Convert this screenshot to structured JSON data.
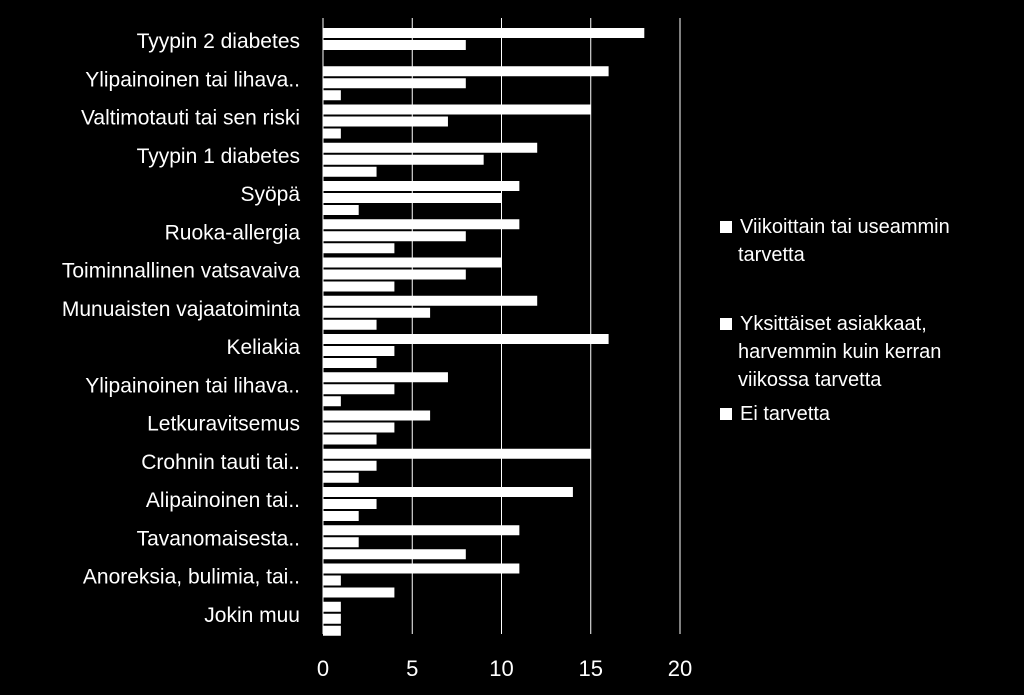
{
  "chart_data": {
    "type": "bar",
    "orientation": "horizontal",
    "categories": [
      "Tyypin 2 diabetes",
      "Ylipainoinen tai lihava..",
      "Valtimotauti tai sen riski",
      "Tyypin 1 diabetes",
      "Syöpä",
      "Ruoka-allergia",
      "Toiminnallinen vatsavaiva",
      "Munuaisten vajaatoiminta",
      "Keliakia",
      "Ylipainoinen tai lihava..",
      "Letkuravitsemus",
      "Crohnin tauti tai..",
      "Alipainoinen tai..",
      "Tavanomaisesta..",
      "Anoreksia, bulimia, tai..",
      "Jokin muu"
    ],
    "series": [
      {
        "name": [
          "Viikoittain tai useammin",
          "tarvetta"
        ],
        "values": [
          18,
          16,
          15,
          12,
          11,
          11,
          10,
          12,
          16,
          7,
          6,
          15,
          14,
          11,
          11,
          1
        ]
      },
      {
        "name": [
          "Yksittäiset asiakkaat,",
          "harvemmin kuin kerran",
          "viikossa tarvetta"
        ],
        "values": [
          8,
          8,
          7,
          9,
          10,
          8,
          8,
          6,
          4,
          4,
          4,
          3,
          3,
          2,
          1,
          1
        ]
      },
      {
        "name": [
          "Ei tarvetta"
        ],
        "values": [
          0,
          1,
          1,
          3,
          2,
          4,
          4,
          3,
          3,
          1,
          3,
          2,
          2,
          8,
          4,
          1
        ]
      }
    ],
    "xlim": [
      0,
      20
    ],
    "xticks": [
      "0",
      "5",
      "10",
      "15",
      "20"
    ],
    "grid": true,
    "legend_position": "right",
    "colors": {
      "background": "#000000",
      "bars": "#ffffff",
      "gridlines": "#ffffff",
      "text": "#ffffff"
    }
  }
}
